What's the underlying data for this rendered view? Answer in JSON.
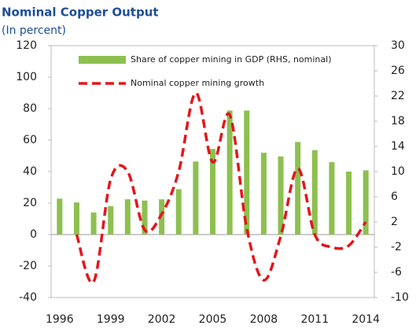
{
  "chart_data": {
    "type": "bar-line",
    "title": "Nominal Copper Output",
    "subtitle": "(In percent)",
    "categories": [
      "1996",
      null,
      null,
      "1999",
      null,
      null,
      "2002",
      null,
      null,
      "2005",
      null,
      null,
      "2008",
      null,
      null,
      "2011",
      null,
      null,
      "2014"
    ],
    "series": [
      {
        "name": "Share of copper mining in GDP (RHS, nominal)",
        "type": "bar",
        "axis": "y2",
        "color": "#8dc04f",
        "values": [
          5.7,
          5.1,
          3.5,
          4.5,
          5.6,
          5.4,
          5.6,
          7.2,
          11.6,
          13.6,
          19.7,
          19.7,
          13,
          12.4,
          14.7,
          13.4,
          11.5,
          10,
          10.2
        ]
      },
      {
        "name": "Nominal copper mining growth",
        "type": "line",
        "color": "#e3161d",
        "values": [
          null,
          0,
          -30,
          35,
          40,
          3,
          13,
          40,
          90,
          46,
          76,
          4,
          -29,
          -1,
          42,
          0,
          -8,
          -7,
          8
        ]
      }
    ],
    "ylim": [
      -40,
      120
    ],
    "yticks": [
      -40,
      -20,
      0,
      20,
      40,
      60,
      80,
      100,
      120
    ],
    "y2lim": [
      -10,
      30
    ],
    "y2ticks": [
      -10,
      -6,
      -2,
      2,
      6,
      10,
      14,
      18,
      22,
      26,
      30
    ]
  }
}
